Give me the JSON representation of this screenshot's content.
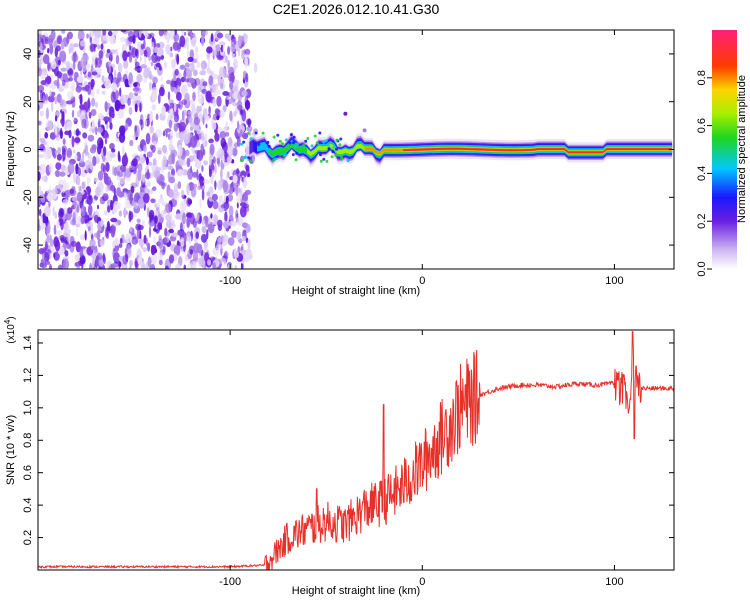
{
  "page_title": "C2E1.2026.012.10.41.G30",
  "chart_data": [
    {
      "type": "heatmap",
      "title": "C2E1.2026.012.10.41.G30",
      "xlabel": "Height of straight line (km)",
      "ylabel": "Frequency (Hz)",
      "xlim": [
        -200,
        131
      ],
      "ylim": [
        -50,
        50
      ],
      "x_ticks": [
        -100,
        0,
        100
      ],
      "y_ticks": [
        -40,
        -20,
        0,
        20,
        40
      ],
      "colorbar": {
        "label": "Normalized spectral amplitude",
        "range": [
          0.0,
          1.0
        ],
        "ticks": [
          0.0,
          0.2,
          0.4,
          0.6,
          0.8
        ]
      },
      "description_regions": {
        "noise_region_x": [
          -200,
          -90
        ],
        "signal_line_x": [
          -90,
          131
        ],
        "signal_frequency_hz": 0
      }
    },
    {
      "type": "line",
      "title": "",
      "xlabel": "Height of straight line (km)",
      "ylabel": "SNR (10 * v/v)",
      "y_scale_label": "(x10^4)",
      "xlim": [
        -200,
        131
      ],
      "ylim": [
        0,
        1.48
      ],
      "x_ticks": [
        -100,
        0,
        100
      ],
      "y_ticks": [
        0.2,
        0.4,
        0.6,
        0.8,
        1.0,
        1.2,
        1.4
      ],
      "line_color": "#e8302a",
      "series": [
        {
          "name": "SNR",
          "x": [
            -200,
            -150,
            -100,
            -82,
            -78,
            -70,
            -60,
            -50,
            -40,
            -30,
            -20,
            -10,
            0,
            10,
            20,
            30,
            40,
            50,
            60,
            70,
            80,
            90,
            100,
            105,
            108,
            110,
            112,
            120,
            131
          ],
          "y": [
            0.02,
            0.02,
            0.02,
            0.03,
            0.08,
            0.2,
            0.25,
            0.3,
            0.28,
            0.38,
            0.42,
            0.52,
            0.65,
            0.82,
            1.0,
            1.08,
            1.12,
            1.14,
            1.14,
            1.13,
            1.15,
            1.14,
            1.15,
            1.1,
            1.0,
            1.25,
            1.12,
            1.12,
            1.12
          ]
        }
      ]
    }
  ]
}
